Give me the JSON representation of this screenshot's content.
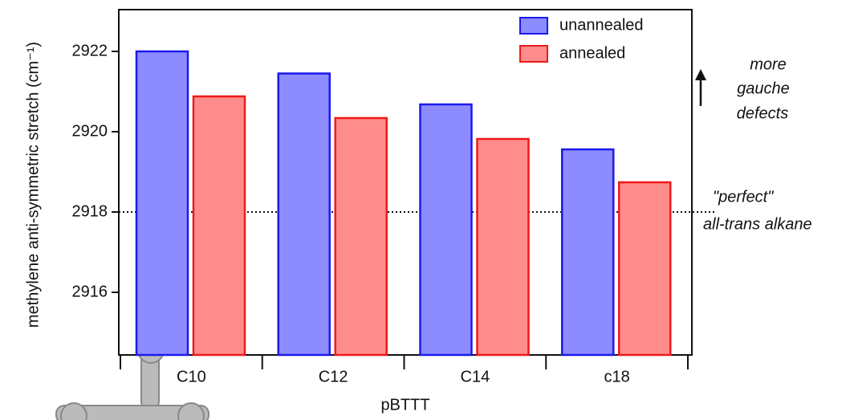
{
  "chart_data": {
    "type": "bar",
    "categories": [
      "C10",
      "C12",
      "C14",
      "c18"
    ],
    "series": [
      {
        "name": "unannealed",
        "color": "#8c8cff",
        "edgecolor": "#1a1aee",
        "values": [
          2922.0,
          2921.45,
          2920.68,
          2919.56
        ]
      },
      {
        "name": "annealed",
        "color": "#ff8c8c",
        "edgecolor": "#ee1a1a",
        "values": [
          2920.88,
          2920.34,
          2919.82,
          2918.74
        ]
      }
    ],
    "xlabel": "pBTTT",
    "ylabel": "methylene anti-symmetric stretch (cm⁻¹)",
    "ylim": [
      2914.44,
      2923.04
    ],
    "yticks": [
      2916,
      2918,
      2920,
      2922
    ],
    "legend": "upper right",
    "reference_line": 2918,
    "annotations": [
      {
        "lines": [
          "more",
          "gauche",
          "defects"
        ]
      },
      {
        "lines": [
          "\"perfect\"",
          "all-trans alkane"
        ]
      }
    ]
  }
}
